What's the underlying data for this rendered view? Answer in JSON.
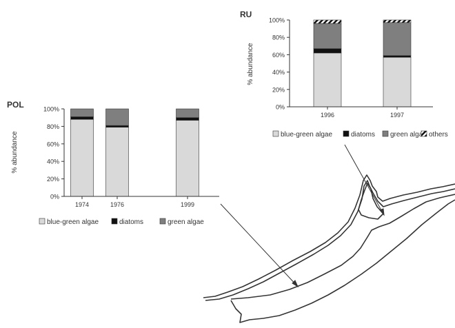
{
  "chart_data": [
    {
      "type": "bar",
      "stacked": true,
      "title": "POL",
      "ylabel": "% abundance",
      "ylim": [
        0,
        100
      ],
      "yticks": [
        "0%",
        "20%",
        "40%",
        "60%",
        "80%",
        "100%"
      ],
      "categories": [
        "1974",
        "1976",
        "1999"
      ],
      "x_positions": [
        1974,
        1976,
        1999
      ],
      "series": [
        {
          "name": "blue-green algae",
          "values": [
            88,
            79,
            87
          ],
          "color": "#d9d9d9"
        },
        {
          "name": "diatoms",
          "values": [
            3,
            2,
            3
          ],
          "color": "#111111"
        },
        {
          "name": "green algae",
          "values": [
            9,
            19,
            10
          ],
          "color": "#7f7f7f"
        }
      ],
      "legend": "bottom"
    },
    {
      "type": "bar",
      "stacked": true,
      "title": "RU",
      "ylabel": "% abundance",
      "ylim": [
        0,
        100
      ],
      "yticks": [
        "0%",
        "20%",
        "40%",
        "60%",
        "80%",
        "100%"
      ],
      "categories": [
        "1996",
        "1997"
      ],
      "series": [
        {
          "name": "blue-green algae",
          "values": [
            62,
            57
          ],
          "color": "#d9d9d9"
        },
        {
          "name": "diatoms",
          "values": [
            5,
            2
          ],
          "color": "#111111"
        },
        {
          "name": "green algae",
          "values": [
            29,
            38
          ],
          "color": "#7f7f7f"
        },
        {
          "name": "others",
          "values": [
            4,
            3
          ],
          "color": "#ffffff",
          "pattern": "hatched"
        }
      ],
      "legend": "bottom"
    }
  ],
  "colors": {
    "axis": "#333333",
    "map_outline": "#333333"
  }
}
